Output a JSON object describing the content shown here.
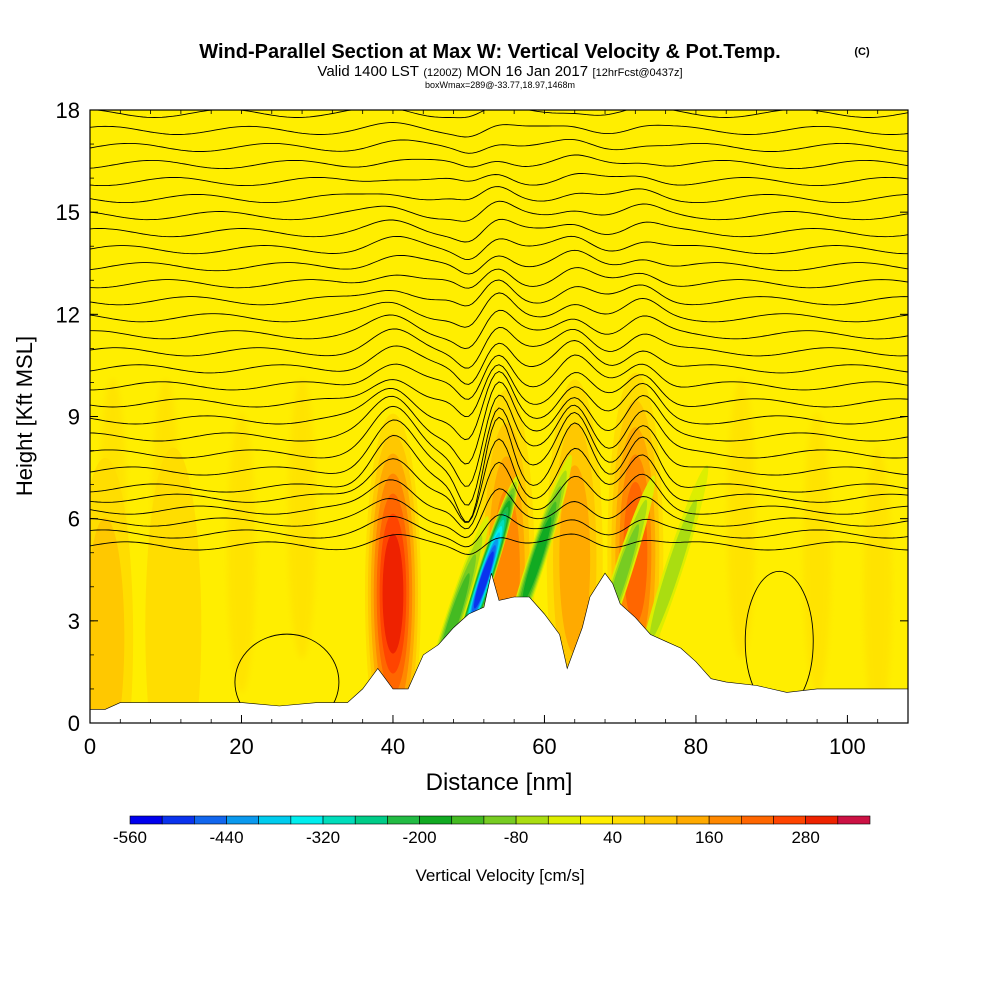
{
  "chart_data": {
    "type": "heatmap",
    "title": "Wind-Parallel Section at Max W: Vertical Velocity & Pot.Temp.",
    "title_suffix": "(C)",
    "subtitle_parts": [
      "Valid 1400 LST",
      "(1200Z)",
      "MON 16 Jan 2017",
      "[12hrFcst@0437z]"
    ],
    "subtitle2": "boxWmax=289@-33.77,18.97,1468m",
    "xlabel": "Distance [nm]",
    "ylabel": "Height [Kft MSL]",
    "xlim": [
      0,
      108
    ],
    "ylim": [
      0,
      18
    ],
    "xticks": [
      "0",
      "20",
      "40",
      "60",
      "80",
      "100"
    ],
    "yticks": [
      "0",
      "3",
      "6",
      "9",
      "12",
      "15",
      "18"
    ],
    "colorbar": {
      "label": "Vertical Velocity [cm/s]",
      "tick_labels": [
        "-560",
        "-440",
        "-320",
        "-200",
        "-80",
        "40",
        "160",
        "280"
      ],
      "levels": [
        -560,
        -520,
        -480,
        -440,
        -400,
        -360,
        -320,
        -280,
        -240,
        -200,
        -160,
        -120,
        -80,
        -40,
        0,
        40,
        80,
        120,
        160,
        200,
        240,
        280,
        320,
        360
      ],
      "colors": [
        "#0000ee",
        "#0a33ee",
        "#1166ee",
        "#0a99ee",
        "#00ccee",
        "#00eeee",
        "#00ddbb",
        "#00cc88",
        "#22bb44",
        "#11aa22",
        "#44bb22",
        "#77cc22",
        "#aadd11",
        "#ddee00",
        "#ffee00",
        "#ffdd00",
        "#ffc800",
        "#ffaa00",
        "#ff8800",
        "#ff6600",
        "#ff4400",
        "#ee2200",
        "#cc1144"
      ]
    },
    "terrain": [
      [
        0,
        0.4
      ],
      [
        2,
        0.4
      ],
      [
        4,
        0.6
      ],
      [
        6,
        0.6
      ],
      [
        10,
        0.6
      ],
      [
        15,
        0.6
      ],
      [
        20,
        0.6
      ],
      [
        25,
        0.5
      ],
      [
        30,
        0.6
      ],
      [
        34,
        0.6
      ],
      [
        36,
        1.0
      ],
      [
        38,
        1.6
      ],
      [
        40,
        1.0
      ],
      [
        42,
        1.0
      ],
      [
        43,
        1.5
      ],
      [
        44,
        2.0
      ],
      [
        46,
        2.3
      ],
      [
        48,
        2.8
      ],
      [
        50,
        3.2
      ],
      [
        52,
        3.4
      ],
      [
        53,
        4.4
      ],
      [
        54,
        3.6
      ],
      [
        56,
        3.7
      ],
      [
        58,
        3.7
      ],
      [
        60,
        3.2
      ],
      [
        62,
        2.6
      ],
      [
        63,
        1.6
      ],
      [
        65,
        2.8
      ],
      [
        66,
        3.7
      ],
      [
        68,
        4.4
      ],
      [
        69,
        4.1
      ],
      [
        70,
        3.5
      ],
      [
        72,
        3.1
      ],
      [
        74,
        2.6
      ],
      [
        76,
        2.4
      ],
      [
        78,
        2.2
      ],
      [
        80,
        1.8
      ],
      [
        82,
        1.3
      ],
      [
        84,
        1.2
      ],
      [
        88,
        1.1
      ],
      [
        92,
        0.9
      ],
      [
        96,
        1.0
      ],
      [
        100,
        1.0
      ],
      [
        104,
        1.0
      ],
      [
        108,
        1.0
      ]
    ],
    "updraft_cells": [
      {
        "x": 40,
        "z": 3.8,
        "w": 289
      },
      {
        "x": 55,
        "z": 4.5,
        "w": 160
      },
      {
        "x": 64,
        "z": 4.8,
        "w": 120
      },
      {
        "x": 72,
        "z": 5.0,
        "w": 200
      },
      {
        "x": 2,
        "z": 2.5,
        "w": 90
      },
      {
        "x": 11,
        "z": 2.8,
        "w": 60
      }
    ],
    "downdraft_cells": [
      {
        "x": 52,
        "z": 4.2,
        "w": -520
      },
      {
        "x": 48,
        "z": 3.0,
        "w": -160
      },
      {
        "x": 59,
        "z": 4.8,
        "w": -200
      },
      {
        "x": 70,
        "z": 4.2,
        "w": -120
      },
      {
        "x": 77,
        "z": 4.5,
        "w": -80
      }
    ],
    "theta_contours": {
      "interval_note": "1 C",
      "wave_amplitudes": [
        0.15,
        0.25,
        0.4,
        0.6,
        0.8,
        1.0,
        0.9,
        0.8,
        0.7,
        0.6,
        0.5,
        0.45,
        0.4,
        0.35,
        0.3,
        0.28,
        0.25,
        0.22,
        0.2,
        0.18,
        0.16,
        0.14,
        0.12,
        0.1,
        0.09,
        0.08,
        0.07,
        0.06,
        0.05,
        0.04
      ]
    }
  }
}
